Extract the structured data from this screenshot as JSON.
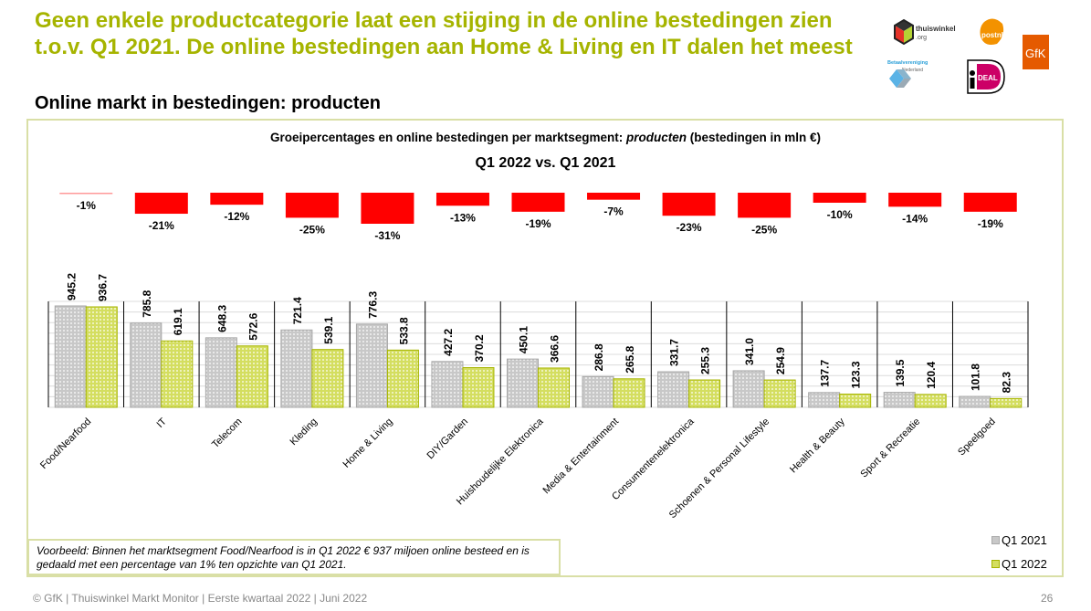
{
  "headline": "Geen enkele productcategorie laat een stijging in de online bestedingen zien t.o.v. Q1 2021. De online bestedingen aan Home & Living en IT dalen het meest",
  "subheadline": "Online markt in bestedingen: producten",
  "logos": {
    "thuiswinkel": {
      "line1": "thuiswinkel",
      "line2": ".org"
    },
    "postnl": "postnl",
    "gfk": "GfK",
    "betaalvereniging": {
      "line1": "Betaalvereniging",
      "line2": "Nederland"
    },
    "ideal": "DEAL"
  },
  "chart_title_prefix": "Groeipercentages en online bestedingen per marktsegment: ",
  "chart_title_italic": "producten",
  "chart_title_suffix": " (bestedingen in mln €)",
  "chart_subtitle": "Q1 2022 vs. Q1 2021",
  "chart_data": {
    "type": "bar",
    "title": "Groeipercentages en online bestedingen per marktsegment: producten (bestedingen in mln €)",
    "subtitle": "Q1 2022 vs. Q1 2021",
    "xlabel": "",
    "ylabel": "",
    "ylim": [
      0,
      1000
    ],
    "grid": true,
    "legend_position": "bottom-right",
    "categories": [
      "Food/Nearfood",
      "IT",
      "Telecom",
      "Kleding",
      "Home & Living",
      "DIY/Garden",
      "Huishoudelijke Elektronica",
      "Media & Entertainment",
      "Consumentenelektronica",
      "Schoenen & Personal Lifestyle",
      "Health & Beauty",
      "Sport & Recreatie",
      "Speelgoed"
    ],
    "series": [
      {
        "name": "Q1 2021",
        "color": "#bfbfbf",
        "values": [
          945.2,
          785.8,
          648.3,
          721.4,
          776.3,
          427.2,
          450.1,
          286.8,
          331.7,
          341.0,
          137.7,
          139.5,
          101.8
        ]
      },
      {
        "name": "Q1 2022",
        "color": "#a6b400",
        "values": [
          936.7,
          619.1,
          572.6,
          539.1,
          533.8,
          370.2,
          366.6,
          265.8,
          255.3,
          254.9,
          123.3,
          120.4,
          82.3
        ]
      }
    ],
    "value_labels_q1_2021": [
      "945.2",
      "785.8",
      "648.3",
      "721.4",
      "776.3",
      "427.2",
      "450.1",
      "286.8",
      "331.7",
      "341.0",
      "137.7",
      "139.5",
      "101.8"
    ],
    "value_labels_q1_2022": [
      "936.7",
      "619.1",
      "572.6",
      "539.1",
      "533.8",
      "370.2",
      "366.6",
      "265.8",
      "255.3",
      "254.9",
      "123.3",
      "120.4",
      "82.3"
    ],
    "growth": {
      "name": "Groeipercentage",
      "color": "#ff0000",
      "values": [
        -1,
        -21,
        -12,
        -25,
        -31,
        -13,
        -19,
        -7,
        -23,
        -25,
        -10,
        -14,
        -19
      ],
      "labels": [
        "-1%",
        "-21%",
        "-12%",
        "-25%",
        "-31%",
        "-13%",
        "-19%",
        "-7%",
        "-23%",
        "-25%",
        "-10%",
        "-14%",
        "-19%"
      ]
    }
  },
  "legend": [
    {
      "label": "Q1 2021",
      "color": "#bfbfbf"
    },
    {
      "label": "Q1 2022",
      "color": "#a6b400"
    }
  ],
  "example_text": "Voorbeeld: Binnen het marktsegment Food/Nearfood is in Q1 2022 € 937 miljoen online besteed en is gedaald met een percentage van 1% ten opzichte van Q1 2021.",
  "footer": "© GfK | Thuiswinkel Markt Monitor | Eerste kwartaal 2022 | Juni 2022",
  "page_number": "26"
}
